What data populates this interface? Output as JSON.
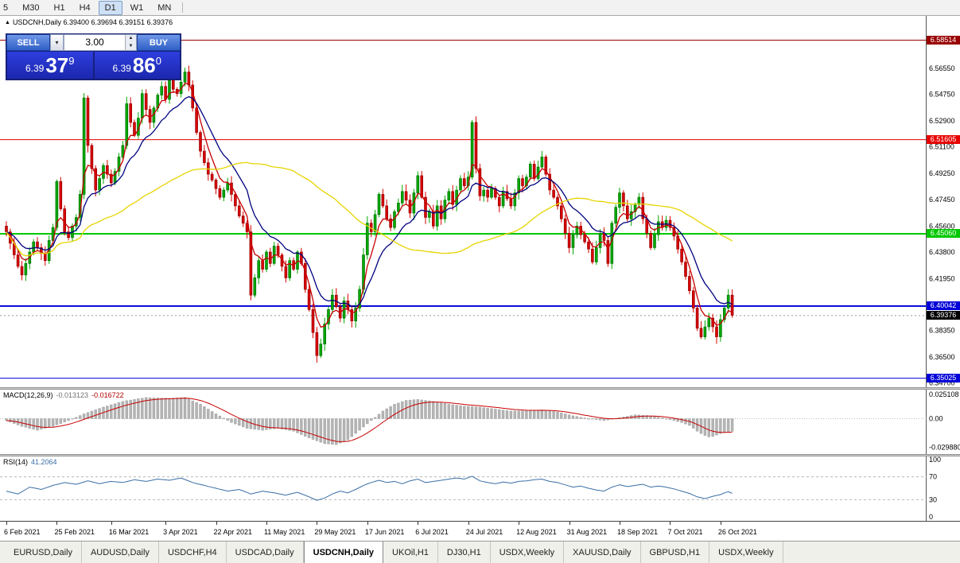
{
  "toolbar": {
    "timeframes": [
      "5",
      "M30",
      "H1",
      "H4",
      "D1",
      "W1",
      "MN"
    ],
    "active": "D1"
  },
  "chart": {
    "info_marker": "▲",
    "info_line": "USDCNH,Daily 6.39400 6.39694 6.39151 6.39376",
    "one_click": {
      "sell_label": "SELL",
      "buy_label": "BUY",
      "volume": "3.00",
      "dropdown_icon": "▾",
      "spin_up_icon": "▲",
      "spin_down_icon": "▼",
      "sell_price_main": "6.39",
      "sell_price_pips": "37",
      "sell_price_sup": "9",
      "buy_price_main": "6.39",
      "buy_price_pips": "86",
      "buy_price_sup": "0"
    },
    "levels": [
      {
        "value": 6.58514,
        "label": "6.58514",
        "color": "#990000",
        "width": 1
      },
      {
        "value": 6.51605,
        "label": "6.51605",
        "color": "#e80000",
        "width": 1
      },
      {
        "value": 6.4506,
        "label": "6.45060",
        "color": "#00c800",
        "width": 2
      },
      {
        "value": 6.40042,
        "label": "6.40042",
        "color": "#0000d8",
        "width": 2
      },
      {
        "value": 6.35025,
        "label": "6.35025",
        "color": "#0000d8",
        "width": 1
      }
    ],
    "current_price": {
      "value": 6.39376,
      "label": "6.39376",
      "color": "#000000"
    }
  },
  "chart_data": [
    {
      "type": "candlestick",
      "title": "USDCNH,Daily",
      "x0": 8,
      "dx": 4.88,
      "ylim": [
        6.344,
        6.602
      ],
      "axis_labels": [
        "6.56550",
        "6.54750",
        "6.52900",
        "6.51100",
        "6.49250",
        "6.47450",
        "6.45600",
        "6.43800",
        "6.41950",
        "6.40150",
        "6.38350",
        "6.36500",
        "6.34700"
      ],
      "closes": [
        6.452,
        6.444,
        6.436,
        6.428,
        6.422,
        6.43,
        6.438,
        6.445,
        6.441,
        6.437,
        6.432,
        6.446,
        6.455,
        6.487,
        6.468,
        6.452,
        6.448,
        6.456,
        6.462,
        6.478,
        6.545,
        6.512,
        6.496,
        6.481,
        6.489,
        6.498,
        6.492,
        6.486,
        6.494,
        6.504,
        6.512,
        6.541,
        6.528,
        6.519,
        6.531,
        6.548,
        6.537,
        6.528,
        6.538,
        6.547,
        6.553,
        6.544,
        6.558,
        6.551,
        6.548,
        6.556,
        6.563,
        6.554,
        6.538,
        6.521,
        6.508,
        6.5,
        6.492,
        6.488,
        6.482,
        6.476,
        6.481,
        6.486,
        6.478,
        6.47,
        6.463,
        6.458,
        6.452,
        6.408,
        6.42,
        6.432,
        6.426,
        6.438,
        6.43,
        6.442,
        6.436,
        6.428,
        6.42,
        6.432,
        6.426,
        6.438,
        6.43,
        6.412,
        6.398,
        6.382,
        6.366,
        6.374,
        6.388,
        6.398,
        6.408,
        6.4,
        6.392,
        6.404,
        6.398,
        6.39,
        6.399,
        6.412,
        6.436,
        6.458,
        6.452,
        6.464,
        6.478,
        6.47,
        6.461,
        6.455,
        6.466,
        6.472,
        6.48,
        6.474,
        6.465,
        6.479,
        6.491,
        6.476,
        6.462,
        6.466,
        6.456,
        6.47,
        6.461,
        6.474,
        6.48,
        6.471,
        6.481,
        6.489,
        6.484,
        6.49,
        6.528,
        6.496,
        6.477,
        6.481,
        6.476,
        6.482,
        6.476,
        6.47,
        6.48,
        6.475,
        6.47,
        6.479,
        6.489,
        6.484,
        6.49,
        6.499,
        6.489,
        6.497,
        6.504,
        6.492,
        6.481,
        6.476,
        6.47,
        6.461,
        6.451,
        6.441,
        6.45,
        6.456,
        6.45,
        6.445,
        6.44,
        6.431,
        6.441,
        6.451,
        6.446,
        6.43,
        6.458,
        6.469,
        6.479,
        6.47,
        6.461,
        6.466,
        6.471,
        6.476,
        6.461,
        6.451,
        6.441,
        6.45,
        6.459,
        6.455,
        6.46,
        6.455,
        6.449,
        6.44,
        6.431,
        6.421,
        6.411,
        6.399,
        6.385,
        6.379,
        6.386,
        6.392,
        6.386,
        6.379,
        6.391,
        6.399,
        6.408,
        6.394
      ],
      "moving_averages": [
        {
          "name": "fast",
          "method": "ema",
          "period": 5,
          "color_key": "ma_fast"
        },
        {
          "name": "medium",
          "method": "ema",
          "period": 13,
          "color_key": "ma_mid"
        },
        {
          "name": "slow",
          "method": "sma",
          "period": 55,
          "color_key": "ma_slow"
        }
      ]
    },
    {
      "type": "bar",
      "name_label": "MACD(12,26,9)",
      "value1": "-0.013123",
      "value2": "-0.016722",
      "ylim": [
        -0.0367,
        0.0301
      ],
      "axis_labels": [
        "0.025108",
        "0.00",
        "-0.029880"
      ],
      "signal_period": 9,
      "values": [
        -0.002,
        -0.0035,
        -0.005,
        -0.0065,
        -0.008,
        -0.009,
        -0.01,
        -0.011,
        -0.012,
        -0.011,
        -0.01,
        -0.009,
        -0.008,
        -0.0065,
        -0.005,
        -0.0035,
        -0.002,
        -0.0003,
        0.0015,
        0.0033,
        0.005,
        0.0064,
        0.0078,
        0.0092,
        0.0106,
        0.012,
        0.0132,
        0.0144,
        0.0156,
        0.0168,
        0.018,
        0.0187,
        0.0193,
        0.02,
        0.0207,
        0.0213,
        0.022,
        0.0218,
        0.0217,
        0.0215,
        0.0213,
        0.0212,
        0.021,
        0.0213,
        0.0215,
        0.0218,
        0.022,
        0.0203,
        0.0185,
        0.0168,
        0.015,
        0.0125,
        0.01,
        0.0075,
        0.005,
        0.0028,
        0.0005,
        -0.0018,
        -0.004,
        -0.0055,
        -0.007,
        -0.0085,
        -0.01,
        -0.0105,
        -0.011,
        -0.0115,
        -0.012,
        -0.0115,
        -0.011,
        -0.0105,
        -0.01,
        -0.0108,
        -0.0115,
        -0.0123,
        -0.013,
        -0.0148,
        -0.0165,
        -0.0183,
        -0.02,
        -0.0215,
        -0.023,
        -0.0245,
        -0.026,
        -0.0263,
        -0.0267,
        -0.027,
        -0.0253,
        -0.0237,
        -0.022,
        -0.0187,
        -0.0153,
        -0.012,
        -0.0087,
        -0.0053,
        -0.002,
        0.0013,
        0.0047,
        0.008,
        0.0103,
        0.0127,
        0.015,
        0.0163,
        0.0177,
        0.019,
        0.0193,
        0.0197,
        0.02,
        0.0195,
        0.019,
        0.0185,
        0.018,
        0.0173,
        0.0165,
        0.0158,
        0.015,
        0.0145,
        0.014,
        0.0135,
        0.013,
        0.0128,
        0.0125,
        0.0123,
        0.012,
        0.0115,
        0.011,
        0.0105,
        0.01,
        0.0095,
        0.009,
        0.0085,
        0.008,
        0.008,
        0.008,
        0.008,
        0.008,
        0.0083,
        0.0085,
        0.0088,
        0.009,
        0.0085,
        0.008,
        0.0075,
        0.007,
        0.006,
        0.005,
        0.004,
        0.003,
        0.0023,
        0.0015,
        0.0008,
        0.0,
        -0.0005,
        -0.001,
        -0.0015,
        -0.002,
        -0.0013,
        -0.0005,
        0.0003,
        0.001,
        0.0018,
        0.0025,
        0.0033,
        0.004,
        0.0038,
        0.0035,
        0.0033,
        0.003,
        0.0023,
        0.0015,
        0.0008,
        0.0,
        -0.001,
        -0.002,
        -0.003,
        -0.004,
        -0.0055,
        -0.007,
        -0.01,
        -0.013,
        -0.0155,
        -0.0175,
        -0.019,
        -0.0185,
        -0.017,
        -0.0155,
        -0.0145,
        -0.0138,
        -0.0131
      ]
    },
    {
      "type": "line",
      "name_label": "RSI(14)",
      "value1": "41.2064",
      "ylim": [
        -6.9,
        105.6
      ],
      "axis_labels": [
        "100",
        "70",
        "30",
        "0"
      ],
      "levels": [
        70,
        30
      ],
      "values": [
        45,
        43.3,
        41.7,
        40,
        44,
        48,
        52,
        50.7,
        49.3,
        48,
        50.3,
        52.7,
        55,
        56.7,
        58.3,
        60,
        59,
        58,
        57,
        59,
        61,
        63,
        61.3,
        59.7,
        58,
        59.3,
        60.7,
        62,
        61.3,
        60.7,
        60,
        61.7,
        63.3,
        65,
        64,
        63,
        62,
        63.3,
        64.7,
        66,
        65.3,
        64.7,
        64,
        65.3,
        66.7,
        68,
        65.3,
        62.7,
        60,
        58.3,
        56.7,
        55,
        53.3,
        51.7,
        50,
        48.3,
        46.7,
        45,
        46,
        47,
        48,
        45.3,
        42.7,
        40,
        41.7,
        43.3,
        45,
        44,
        43,
        42,
        40.7,
        39.3,
        38,
        39.7,
        41.3,
        43,
        40.3,
        37.7,
        35,
        32,
        29,
        31,
        33,
        36.5,
        40,
        42.5,
        45,
        43.5,
        42,
        45,
        48,
        51.5,
        55,
        57.5,
        60,
        62,
        64,
        62,
        60,
        61,
        62,
        60,
        58,
        60.5,
        63,
        64.5,
        66,
        63,
        60,
        61,
        62,
        63,
        64,
        65,
        66,
        67,
        68,
        67,
        66,
        68.5,
        71,
        67,
        63,
        61.5,
        60,
        59,
        58,
        59.5,
        61,
        60,
        59,
        60.5,
        62,
        62.5,
        63,
        64,
        65,
        65.5,
        66,
        64,
        62,
        61,
        60,
        58,
        56,
        54,
        52,
        53,
        54,
        52,
        50,
        48.5,
        47,
        46,
        45,
        48.5,
        52,
        54,
        56,
        54.5,
        53,
        54,
        55,
        56,
        57,
        54.5,
        52,
        53,
        54,
        53,
        52,
        50.5,
        49,
        47,
        45,
        43,
        41,
        38,
        35,
        33.5,
        32,
        34,
        36,
        37.5,
        39,
        42,
        44,
        41.2
      ]
    }
  ],
  "date_axis": {
    "labels": [
      "6 Feb 2021",
      "25 Feb 2021",
      "16 Mar 2021",
      "3 Apr 2021",
      "22 Apr 2021",
      "11 May 2021",
      "29 May 2021",
      "17 Jun 2021",
      "6 Jul 2021",
      "24 Jul 2021",
      "12 Aug 2021",
      "31 Aug 2021",
      "18 Sep 2021",
      "7 Oct 2021",
      "26 Oct 2021"
    ],
    "tick_indices": [
      0,
      13,
      27,
      41,
      54,
      67,
      80,
      93,
      106,
      119,
      132,
      145,
      158,
      171,
      184
    ]
  },
  "tabs": {
    "items": [
      "EURUSD,Daily",
      "AUDUSD,Daily",
      "USDCHF,H4",
      "USDCAD,Daily",
      "USDCNH,Daily",
      "UKOil,H1",
      "DJ30,H1",
      "USDX,Weekly",
      "XAUUSD,Daily",
      "GBPUSD,H1",
      "USDX,Weekly"
    ],
    "active_index": 4
  },
  "colors": {
    "up": "#00a800",
    "up_border": "#006600",
    "down": "#d80000",
    "down_border": "#8a0000",
    "ma_fast": "#c80000",
    "ma_mid": "#000080",
    "ma_slow": "#e6d400",
    "macd_bar": "#b4b4b4",
    "macd_signal": "#c80000",
    "rsi_line": "#3a6ea5"
  }
}
